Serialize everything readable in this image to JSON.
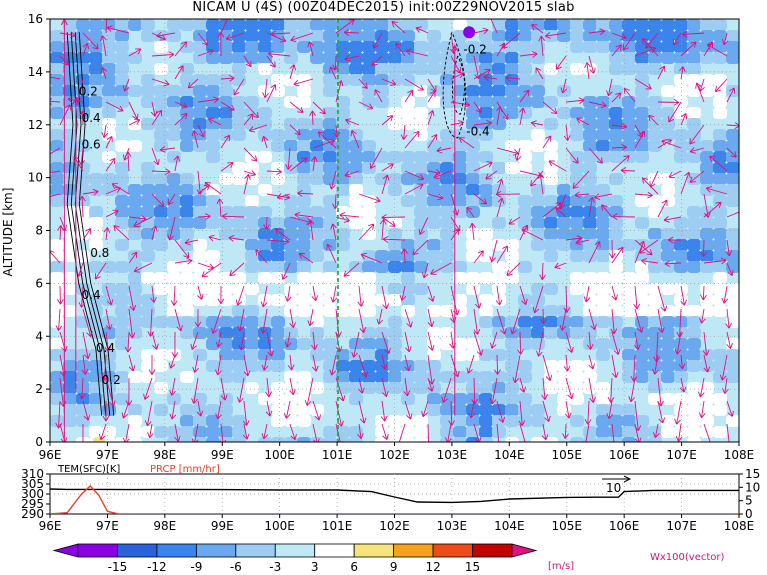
{
  "title": "NICAM U (4S) (00Z04DEC2015) init:00Z29NOV2015 slab",
  "chart_data": [
    {
      "type": "heatmap",
      "ylabel": "ALTITUDE [km]",
      "xlabel": "",
      "x_ticks": [
        "96E",
        "97E",
        "98E",
        "99E",
        "100E",
        "101E",
        "102E",
        "103E",
        "104E",
        "105E",
        "106E",
        "107E",
        "108E"
      ],
      "y_ticks": [
        "0",
        "2",
        "4",
        "6",
        "8",
        "10",
        "12",
        "14",
        "16"
      ],
      "xlim": [
        96,
        108
      ],
      "ylim": [
        0,
        16
      ],
      "grid": true,
      "marker_line_lon": 101,
      "contour_labels": [
        "0.2",
        "0.4",
        "0.6",
        "0.8",
        "0.4",
        "0.4",
        "0.2",
        "-0.2",
        "-0.4"
      ],
      "vector_color": "#e0107e"
    },
    {
      "type": "line",
      "series": [
        {
          "name": "TEM(SFC)[K]",
          "color": "#000000"
        },
        {
          "name": "PRCP [mm/hr]",
          "color": "#e8402a"
        }
      ],
      "left_ticks": [
        "310",
        "305",
        "300",
        "295",
        "290"
      ],
      "right_ticks": [
        "15",
        "10",
        "5",
        "0"
      ],
      "x_ticks": [
        "96E",
        "97E",
        "98E",
        "99E",
        "100E",
        "101E",
        "102E",
        "103E",
        "104E",
        "105E",
        "106E",
        "107E",
        "108E"
      ],
      "annotation": "10",
      "tem_x": [
        96,
        96.3,
        97,
        97.5,
        98,
        99,
        100,
        101,
        101.6,
        102,
        102.4,
        103,
        103.5,
        104,
        105,
        105.5,
        105.9,
        106,
        106.5,
        107,
        108
      ],
      "tem_y": [
        302.5,
        302.3,
        302.3,
        302.2,
        302.3,
        302.2,
        302.0,
        302.0,
        301.2,
        298.5,
        296.0,
        295.8,
        296.3,
        297.5,
        298.3,
        298.4,
        298.4,
        301.2,
        301.8,
        301.8,
        301.8
      ],
      "prcp_x": [
        96,
        96.3,
        96.55,
        96.7,
        96.85,
        97.0,
        97.2,
        108
      ],
      "prcp_y": [
        0,
        0.5,
        7.5,
        10.5,
        7.0,
        1.0,
        0,
        0
      ]
    },
    {
      "type": "colorbar",
      "labels": [
        "-15",
        "-12",
        "-9",
        "-6",
        "-3",
        "3",
        "6",
        "9",
        "12",
        "15"
      ],
      "unit": "[m/s]",
      "colors": [
        "#8a00e6",
        "#2a62dc",
        "#3a84ec",
        "#6aa8f0",
        "#9dcdf3",
        "#bfe8f7",
        "#ffffff",
        "#f7e37e",
        "#f6a21a",
        "#ef4b1a",
        "#c40000"
      ],
      "end_color": "#e0107e",
      "vector_label": "Wx100(vector)"
    }
  ]
}
